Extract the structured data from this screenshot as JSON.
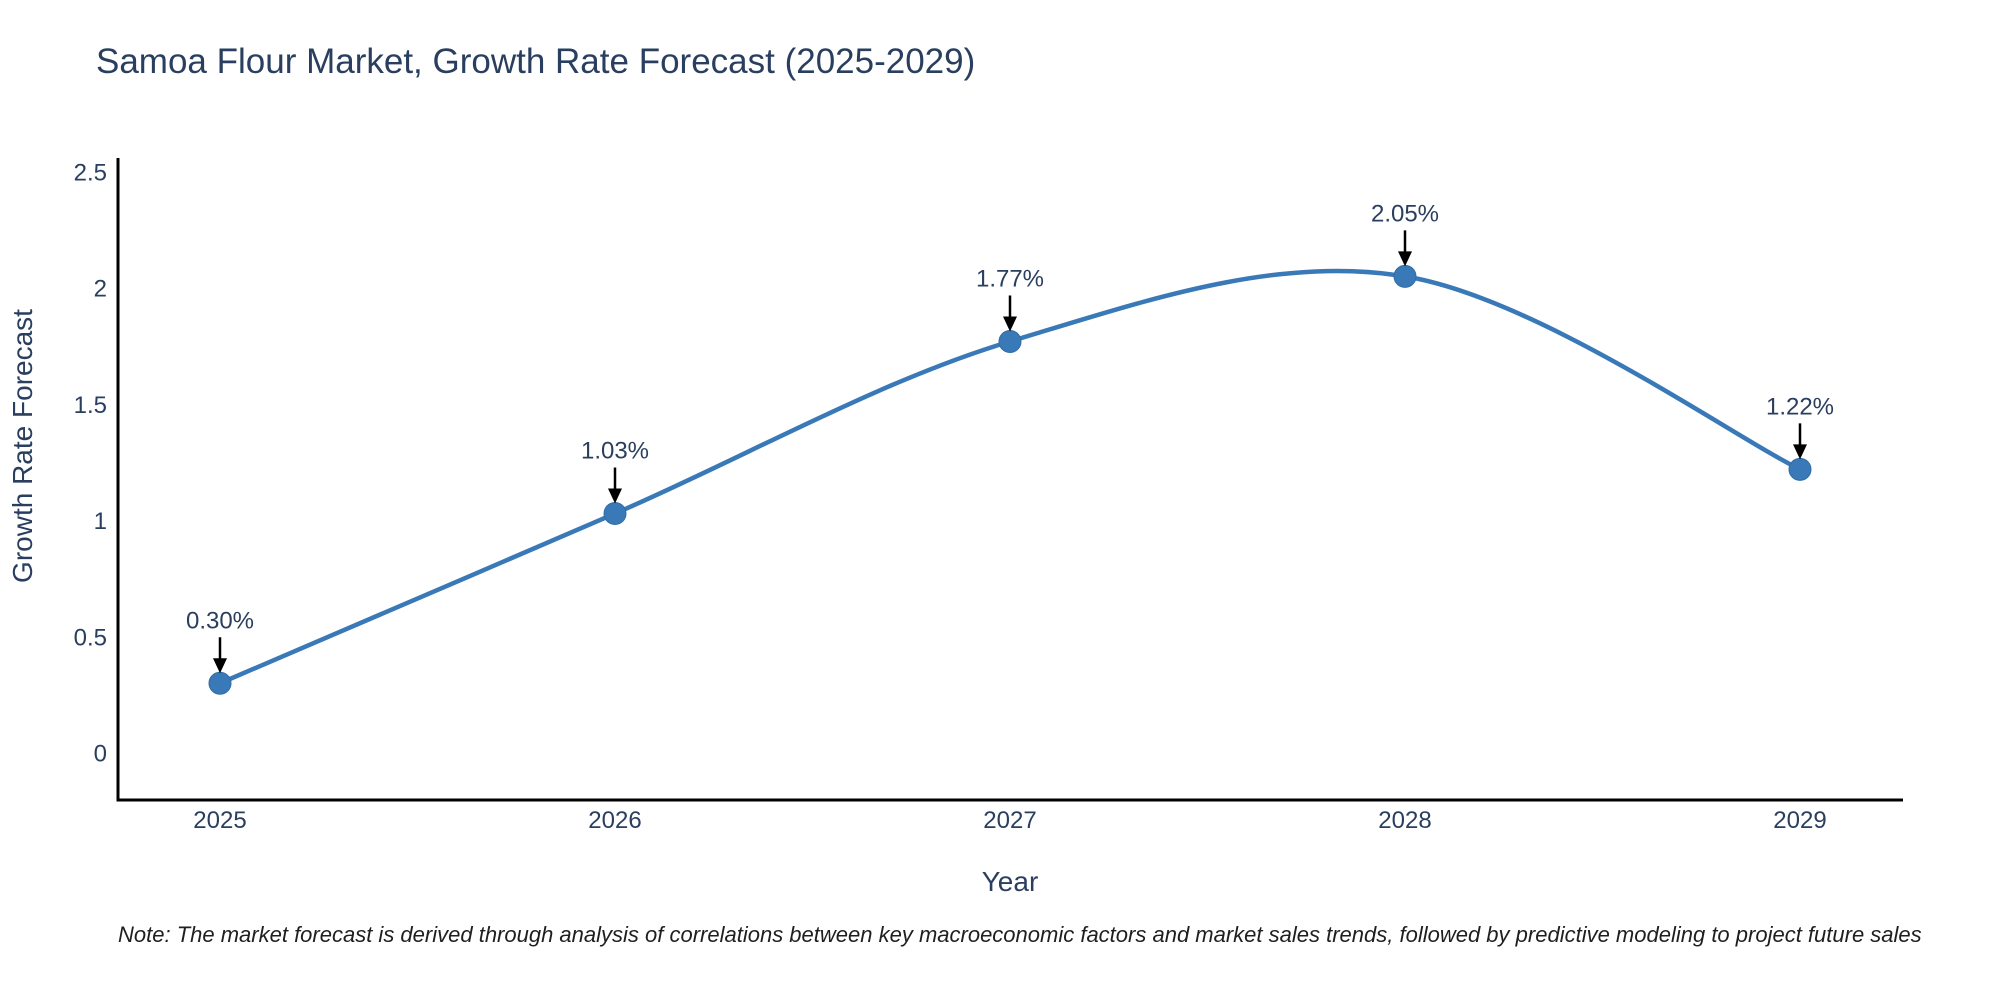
{
  "chart": {
    "title": "Samoa Flour Market, Growth Rate Forecast (2025-2029)",
    "x_axis_title": "Year",
    "y_axis_title": "Growth Rate Forecast",
    "note": "Note: The market forecast is derived through analysis of correlations between key macroeconomic factors and market sales trends, followed by predictive modeling to project future sales",
    "colors": {
      "line": "#3a79b7",
      "marker_fill": "#3a79b7",
      "marker_edge": "#2e6da4",
      "text": "#2a3f5f",
      "axis": "#000000",
      "arrow": "#000000"
    }
  },
  "chart_data": {
    "type": "line",
    "title": "Samoa Flour Market, Growth Rate Forecast (2025-2029)",
    "xlabel": "Year",
    "ylabel": "Growth Rate Forecast",
    "categories": [
      "2025",
      "2026",
      "2027",
      "2028",
      "2029"
    ],
    "values": [
      0.3,
      1.03,
      1.77,
      2.05,
      1.22
    ],
    "point_labels": [
      "0.30%",
      "1.03%",
      "1.77%",
      "2.05%",
      "1.22%"
    ],
    "yticks": [
      0,
      0.5,
      1,
      1.5,
      2,
      2.5
    ],
    "ylim": [
      -0.2,
      2.55
    ],
    "line_shape": "spline",
    "marker": "circle",
    "grid": false,
    "legend": false
  }
}
